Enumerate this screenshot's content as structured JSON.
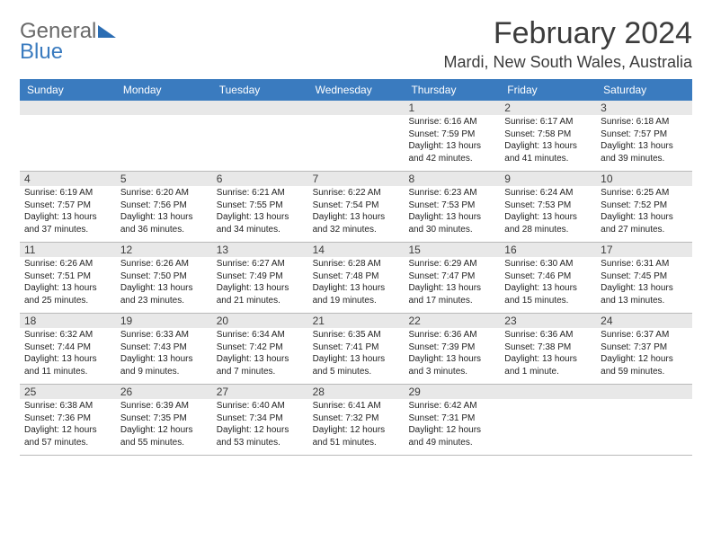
{
  "logo": {
    "first": "General",
    "second": "Blue"
  },
  "title": "February 2024",
  "location": "Mardi, New South Wales, Australia",
  "day_names": [
    "Sunday",
    "Monday",
    "Tuesday",
    "Wednesday",
    "Thursday",
    "Friday",
    "Saturday"
  ],
  "styling": {
    "header_bg": "#3a7bbf",
    "header_text": "#ffffff",
    "stripe_bg": "#e8e8e8",
    "divider_color": "#b9b9b9",
    "body_text": "#232323",
    "title_color": "#3c3c3c",
    "page_bg": "#ffffff",
    "daynum_fontsize": 12,
    "detail_fontsize": 10,
    "title_fontsize": 34,
    "location_fontsize": 18,
    "header_fontsize": 12
  },
  "weeks": [
    [
      {
        "n": "",
        "sr": "",
        "ss": "",
        "dl": ""
      },
      {
        "n": "",
        "sr": "",
        "ss": "",
        "dl": ""
      },
      {
        "n": "",
        "sr": "",
        "ss": "",
        "dl": ""
      },
      {
        "n": "",
        "sr": "",
        "ss": "",
        "dl": ""
      },
      {
        "n": "1",
        "sr": "Sunrise: 6:16 AM",
        "ss": "Sunset: 7:59 PM",
        "dl": "Daylight: 13 hours and 42 minutes."
      },
      {
        "n": "2",
        "sr": "Sunrise: 6:17 AM",
        "ss": "Sunset: 7:58 PM",
        "dl": "Daylight: 13 hours and 41 minutes."
      },
      {
        "n": "3",
        "sr": "Sunrise: 6:18 AM",
        "ss": "Sunset: 7:57 PM",
        "dl": "Daylight: 13 hours and 39 minutes."
      }
    ],
    [
      {
        "n": "4",
        "sr": "Sunrise: 6:19 AM",
        "ss": "Sunset: 7:57 PM",
        "dl": "Daylight: 13 hours and 37 minutes."
      },
      {
        "n": "5",
        "sr": "Sunrise: 6:20 AM",
        "ss": "Sunset: 7:56 PM",
        "dl": "Daylight: 13 hours and 36 minutes."
      },
      {
        "n": "6",
        "sr": "Sunrise: 6:21 AM",
        "ss": "Sunset: 7:55 PM",
        "dl": "Daylight: 13 hours and 34 minutes."
      },
      {
        "n": "7",
        "sr": "Sunrise: 6:22 AM",
        "ss": "Sunset: 7:54 PM",
        "dl": "Daylight: 13 hours and 32 minutes."
      },
      {
        "n": "8",
        "sr": "Sunrise: 6:23 AM",
        "ss": "Sunset: 7:53 PM",
        "dl": "Daylight: 13 hours and 30 minutes."
      },
      {
        "n": "9",
        "sr": "Sunrise: 6:24 AM",
        "ss": "Sunset: 7:53 PM",
        "dl": "Daylight: 13 hours and 28 minutes."
      },
      {
        "n": "10",
        "sr": "Sunrise: 6:25 AM",
        "ss": "Sunset: 7:52 PM",
        "dl": "Daylight: 13 hours and 27 minutes."
      }
    ],
    [
      {
        "n": "11",
        "sr": "Sunrise: 6:26 AM",
        "ss": "Sunset: 7:51 PM",
        "dl": "Daylight: 13 hours and 25 minutes."
      },
      {
        "n": "12",
        "sr": "Sunrise: 6:26 AM",
        "ss": "Sunset: 7:50 PM",
        "dl": "Daylight: 13 hours and 23 minutes."
      },
      {
        "n": "13",
        "sr": "Sunrise: 6:27 AM",
        "ss": "Sunset: 7:49 PM",
        "dl": "Daylight: 13 hours and 21 minutes."
      },
      {
        "n": "14",
        "sr": "Sunrise: 6:28 AM",
        "ss": "Sunset: 7:48 PM",
        "dl": "Daylight: 13 hours and 19 minutes."
      },
      {
        "n": "15",
        "sr": "Sunrise: 6:29 AM",
        "ss": "Sunset: 7:47 PM",
        "dl": "Daylight: 13 hours and 17 minutes."
      },
      {
        "n": "16",
        "sr": "Sunrise: 6:30 AM",
        "ss": "Sunset: 7:46 PM",
        "dl": "Daylight: 13 hours and 15 minutes."
      },
      {
        "n": "17",
        "sr": "Sunrise: 6:31 AM",
        "ss": "Sunset: 7:45 PM",
        "dl": "Daylight: 13 hours and 13 minutes."
      }
    ],
    [
      {
        "n": "18",
        "sr": "Sunrise: 6:32 AM",
        "ss": "Sunset: 7:44 PM",
        "dl": "Daylight: 13 hours and 11 minutes."
      },
      {
        "n": "19",
        "sr": "Sunrise: 6:33 AM",
        "ss": "Sunset: 7:43 PM",
        "dl": "Daylight: 13 hours and 9 minutes."
      },
      {
        "n": "20",
        "sr": "Sunrise: 6:34 AM",
        "ss": "Sunset: 7:42 PM",
        "dl": "Daylight: 13 hours and 7 minutes."
      },
      {
        "n": "21",
        "sr": "Sunrise: 6:35 AM",
        "ss": "Sunset: 7:41 PM",
        "dl": "Daylight: 13 hours and 5 minutes."
      },
      {
        "n": "22",
        "sr": "Sunrise: 6:36 AM",
        "ss": "Sunset: 7:39 PM",
        "dl": "Daylight: 13 hours and 3 minutes."
      },
      {
        "n": "23",
        "sr": "Sunrise: 6:36 AM",
        "ss": "Sunset: 7:38 PM",
        "dl": "Daylight: 13 hours and 1 minute."
      },
      {
        "n": "24",
        "sr": "Sunrise: 6:37 AM",
        "ss": "Sunset: 7:37 PM",
        "dl": "Daylight: 12 hours and 59 minutes."
      }
    ],
    [
      {
        "n": "25",
        "sr": "Sunrise: 6:38 AM",
        "ss": "Sunset: 7:36 PM",
        "dl": "Daylight: 12 hours and 57 minutes."
      },
      {
        "n": "26",
        "sr": "Sunrise: 6:39 AM",
        "ss": "Sunset: 7:35 PM",
        "dl": "Daylight: 12 hours and 55 minutes."
      },
      {
        "n": "27",
        "sr": "Sunrise: 6:40 AM",
        "ss": "Sunset: 7:34 PM",
        "dl": "Daylight: 12 hours and 53 minutes."
      },
      {
        "n": "28",
        "sr": "Sunrise: 6:41 AM",
        "ss": "Sunset: 7:32 PM",
        "dl": "Daylight: 12 hours and 51 minutes."
      },
      {
        "n": "29",
        "sr": "Sunrise: 6:42 AM",
        "ss": "Sunset: 7:31 PM",
        "dl": "Daylight: 12 hours and 49 minutes."
      },
      {
        "n": "",
        "sr": "",
        "ss": "",
        "dl": ""
      },
      {
        "n": "",
        "sr": "",
        "ss": "",
        "dl": ""
      }
    ]
  ]
}
